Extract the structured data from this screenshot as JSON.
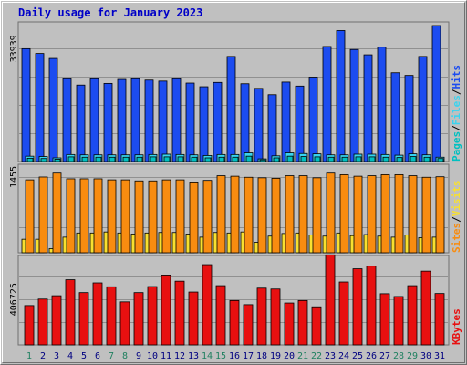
{
  "title": "Daily usage for January 2023",
  "colors": {
    "background": "#c0c0c0",
    "title": "#0000c8",
    "hits": "#1c4cf0",
    "files": "#38d4f0",
    "pages": "#00c0c0",
    "visits": "#f8e030",
    "sites": "#f88c10",
    "kbytes": "#e81010",
    "weekend_label": "#208060",
    "weekday_label": "#000080"
  },
  "chart_data": [
    {
      "type": "bar",
      "title": "Daily usage for January 2023",
      "panel": "hits-files-pages",
      "x": [
        1,
        2,
        3,
        4,
        5,
        6,
        7,
        8,
        9,
        10,
        11,
        12,
        13,
        14,
        15,
        16,
        17,
        18,
        19,
        20,
        21,
        22,
        23,
        24,
        25,
        26,
        27,
        28,
        29,
        30,
        31
      ],
      "ylabel": [
        "Pages",
        "/",
        "Files",
        "/",
        "Hits"
      ],
      "ytick": "33939",
      "ylim": [
        0,
        42000
      ],
      "grid": true,
      "series": [
        {
          "name": "Hits",
          "values": [
            33939,
            32500,
            31000,
            24900,
            23000,
            24900,
            23500,
            24700,
            24900,
            24500,
            24200,
            24900,
            23600,
            22500,
            23800,
            31600,
            23400,
            22000,
            20100,
            23900,
            22700,
            25400,
            34600,
            39400,
            33700,
            32100,
            34400,
            26700,
            25900,
            31600,
            40900
          ]
        },
        {
          "name": "Files",
          "values": [
            1600,
            1500,
            1100,
            2100,
            2000,
            2000,
            2000,
            2000,
            2000,
            2100,
            2200,
            2100,
            2000,
            1800,
            2100,
            2100,
            2600,
            800,
            1700,
            2600,
            2400,
            2300,
            2000,
            2000,
            2200,
            2200,
            2100,
            1900,
            2300,
            2000,
            1300
          ]
        },
        {
          "name": "Pages",
          "values": [
            1000,
            900,
            700,
            1400,
            1300,
            1300,
            1300,
            1300,
            1300,
            1400,
            1400,
            1400,
            1300,
            1100,
            1300,
            1300,
            1600,
            500,
            1100,
            1600,
            1500,
            1400,
            1300,
            1300,
            1400,
            1400,
            1300,
            1200,
            1500,
            1300,
            900
          ]
        }
      ]
    },
    {
      "type": "bar",
      "panel": "visits-sites",
      "x": [
        1,
        2,
        3,
        4,
        5,
        6,
        7,
        8,
        9,
        10,
        11,
        12,
        13,
        14,
        15,
        16,
        17,
        18,
        19,
        20,
        21,
        22,
        23,
        24,
        25,
        26,
        27,
        28,
        29,
        30,
        31
      ],
      "ylabel": [
        "Sites",
        "/",
        "Visits"
      ],
      "ytick": "1455",
      "ylim": [
        0,
        1700
      ],
      "grid": true,
      "series": [
        {
          "name": "Visits",
          "values": [
            260,
            260,
            80,
            300,
            380,
            380,
            400,
            380,
            360,
            380,
            390,
            390,
            360,
            300,
            390,
            380,
            400,
            200,
            320,
            370,
            380,
            340,
            320,
            380,
            330,
            350,
            320,
            300,
            340,
            290,
            300
          ]
        },
        {
          "name": "Sites",
          "values": [
            1400,
            1455,
            1530,
            1420,
            1420,
            1420,
            1400,
            1400,
            1380,
            1380,
            1400,
            1400,
            1360,
            1390,
            1480,
            1470,
            1450,
            1440,
            1430,
            1480,
            1480,
            1440,
            1530,
            1500,
            1470,
            1480,
            1500,
            1500,
            1480,
            1450,
            1460
          ]
        }
      ]
    },
    {
      "type": "bar",
      "panel": "kbytes",
      "x": [
        1,
        2,
        3,
        4,
        5,
        6,
        7,
        8,
        9,
        10,
        11,
        12,
        13,
        14,
        15,
        16,
        17,
        18,
        19,
        20,
        21,
        22,
        23,
        24,
        25,
        26,
        27,
        28,
        29,
        30,
        31
      ],
      "ylabel": [
        "KBytes"
      ],
      "ytick": "406725",
      "ylim": [
        0,
        800000
      ],
      "grid": true,
      "series": [
        {
          "name": "KBytes",
          "values": [
            352000,
            410000,
            440000,
            583000,
            468000,
            555000,
            520000,
            385000,
            468000,
            522000,
            625000,
            570000,
            473000,
            718000,
            530000,
            397000,
            360000,
            508000,
            500000,
            375000,
            397000,
            341000,
            806000,
            563000,
            681000,
            705000,
            458000,
            433000,
            530000,
            660000,
            460000
          ]
        }
      ]
    }
  ]
}
